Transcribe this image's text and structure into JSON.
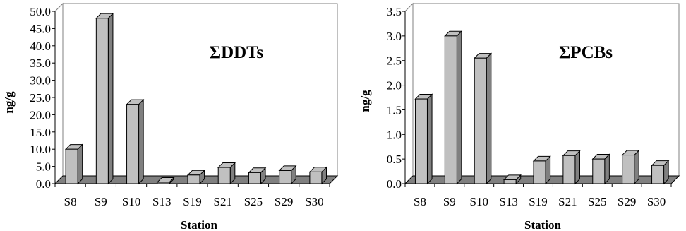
{
  "chart_data": [
    {
      "type": "bar",
      "title": "ΣDDTs",
      "xlabel": "Station",
      "ylabel": "ng/g",
      "ylim": [
        0,
        50
      ],
      "ytick_step": 5,
      "ytick_decimals": 1,
      "grid": false,
      "categories": [
        "S8",
        "S9",
        "S10",
        "S13",
        "S19",
        "S21",
        "S25",
        "S29",
        "S30"
      ],
      "values": [
        10.0,
        48.0,
        23.0,
        0.4,
        2.5,
        4.7,
        3.2,
        3.8,
        3.4
      ],
      "bar_color": "#c0c0c0",
      "floor_color": "#808080"
    },
    {
      "type": "bar",
      "title": "ΣPCBs",
      "xlabel": "Station",
      "ylabel": "ng/g",
      "ylim": [
        0,
        3.5
      ],
      "ytick_step": 0.5,
      "ytick_decimals": 1,
      "grid": false,
      "categories": [
        "S8",
        "S9",
        "S10",
        "S13",
        "S19",
        "S21",
        "S25",
        "S29",
        "S30"
      ],
      "values": [
        1.72,
        3.0,
        2.55,
        0.08,
        0.46,
        0.57,
        0.5,
        0.58,
        0.37
      ],
      "bar_color": "#c0c0c0",
      "floor_color": "#808080"
    }
  ]
}
